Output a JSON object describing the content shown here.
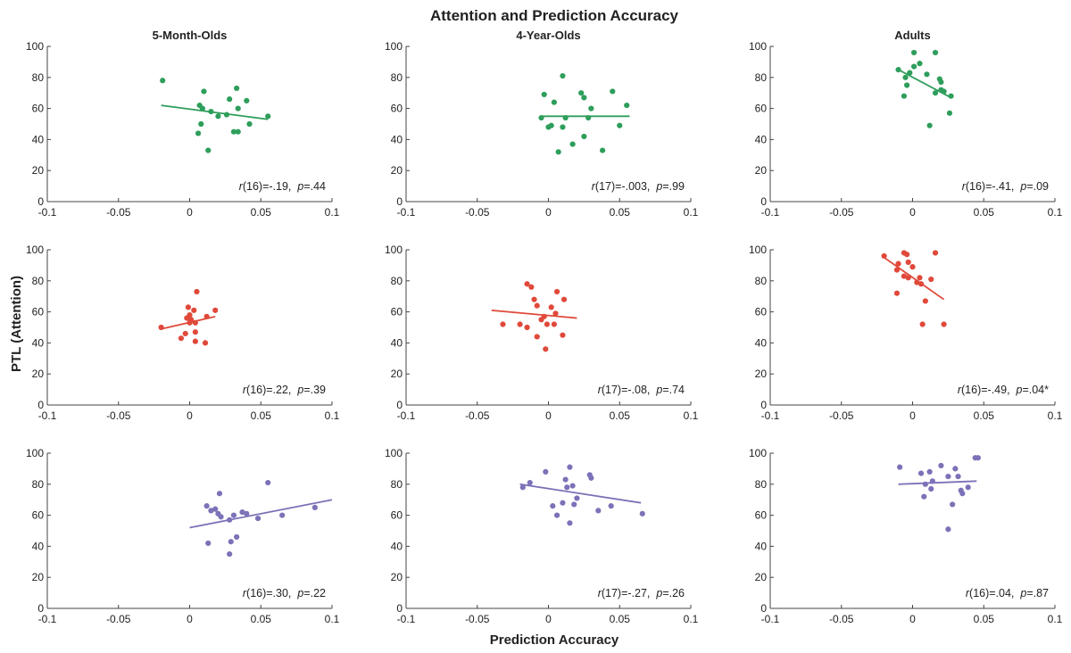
{
  "figure": {
    "title": "Attention and Prediction Accuracy",
    "xlabel": "Prediction Accuracy",
    "ylabel": "PTL (Attention)"
  },
  "colors": {
    "green": "#2e9e5b",
    "red": "#e0493a",
    "purple": "#7b72b8"
  },
  "chart_data": [
    {
      "type": "scatter",
      "title": "5-Month-Olds",
      "color": "green",
      "xlim": [
        -0.1,
        0.1
      ],
      "ylim": [
        0,
        100
      ],
      "xticks": [
        "-0.1",
        "-0.05",
        "0",
        "0.05",
        "0.1"
      ],
      "yticks": [
        "0",
        "20",
        "40",
        "60",
        "80",
        "100"
      ],
      "points": [
        [
          -0.019,
          78
        ],
        [
          0.01,
          71
        ],
        [
          0.007,
          62
        ],
        [
          0.009,
          60
        ],
        [
          0.015,
          58
        ],
        [
          0.02,
          55
        ],
        [
          0.026,
          56
        ],
        [
          0.028,
          66
        ],
        [
          0.033,
          73
        ],
        [
          0.034,
          60
        ],
        [
          0.04,
          65
        ],
        [
          0.008,
          50
        ],
        [
          0.006,
          44
        ],
        [
          0.013,
          33
        ],
        [
          0.031,
          45
        ],
        [
          0.034,
          45
        ],
        [
          0.042,
          50
        ],
        [
          0.055,
          55
        ]
      ],
      "fit": [
        [
          -0.02,
          62
        ],
        [
          0.055,
          53
        ]
      ],
      "stats": {
        "r_df": "(16)=-.19,",
        "p": "=.44"
      }
    },
    {
      "type": "scatter",
      "title": "4-Year-Olds",
      "color": "green",
      "xlim": [
        -0.1,
        0.1
      ],
      "ylim": [
        0,
        100
      ],
      "xticks": [
        "-0.1",
        "-0.05",
        "0",
        "0.05",
        "0.1"
      ],
      "yticks": [
        "0",
        "20",
        "40",
        "60",
        "80",
        "100"
      ],
      "points": [
        [
          0.01,
          81
        ],
        [
          -0.003,
          69
        ],
        [
          0.004,
          64
        ],
        [
          0.023,
          70
        ],
        [
          0.025,
          67
        ],
        [
          0.045,
          71
        ],
        [
          0.055,
          62
        ],
        [
          -0.005,
          54
        ],
        [
          0.012,
          54
        ],
        [
          0.03,
          60
        ],
        [
          0.028,
          54
        ],
        [
          0.002,
          49
        ],
        [
          0.01,
          48
        ],
        [
          0.0,
          48
        ],
        [
          0.05,
          49
        ],
        [
          0.025,
          42
        ],
        [
          0.017,
          37
        ],
        [
          0.038,
          33
        ],
        [
          0.007,
          32
        ]
      ],
      "fit": [
        [
          -0.005,
          55
        ],
        [
          0.057,
          55
        ]
      ],
      "stats": {
        "r_df": "(17)=-.003,",
        "p": "=.99"
      }
    },
    {
      "type": "scatter",
      "title": "Adults",
      "color": "green",
      "xlim": [
        -0.1,
        0.1
      ],
      "ylim": [
        0,
        100
      ],
      "xticks": [
        "-0.1",
        "-0.05",
        "0",
        "0.05",
        "0.1"
      ],
      "yticks": [
        "0",
        "20",
        "40",
        "60",
        "80",
        "100"
      ],
      "points": [
        [
          0.001,
          96
        ],
        [
          0.016,
          96
        ],
        [
          0.005,
          89
        ],
        [
          0.001,
          87
        ],
        [
          -0.01,
          85
        ],
        [
          0.01,
          82
        ],
        [
          -0.002,
          83
        ],
        [
          -0.005,
          80
        ],
        [
          0.019,
          79
        ],
        [
          0.02,
          77
        ],
        [
          -0.004,
          75
        ],
        [
          0.02,
          72
        ],
        [
          0.016,
          70
        ],
        [
          0.022,
          71
        ],
        [
          0.027,
          68
        ],
        [
          -0.006,
          68
        ],
        [
          0.026,
          57
        ],
        [
          0.012,
          49
        ]
      ],
      "fit": [
        [
          -0.01,
          85
        ],
        [
          0.027,
          67
        ]
      ],
      "stats": {
        "r_df": "(16)=-.41,",
        "p": "=.09"
      }
    },
    {
      "type": "scatter",
      "title": "",
      "color": "red",
      "xlim": [
        -0.1,
        0.1
      ],
      "ylim": [
        0,
        100
      ],
      "xticks": [
        "-0.1",
        "-0.05",
        "0",
        "0.05",
        "0.1"
      ],
      "yticks": [
        "0",
        "20",
        "40",
        "60",
        "80",
        "100"
      ],
      "points": [
        [
          0.005,
          73
        ],
        [
          -0.001,
          63
        ],
        [
          0.003,
          61
        ],
        [
          0.018,
          61
        ],
        [
          0.0,
          58
        ],
        [
          0.012,
          57
        ],
        [
          -0.002,
          56
        ],
        [
          0.001,
          55
        ],
        [
          0.0,
          53
        ],
        [
          0.004,
          53
        ],
        [
          -0.02,
          50
        ],
        [
          0.004,
          47
        ],
        [
          -0.003,
          46
        ],
        [
          -0.006,
          43
        ],
        [
          0.004,
          41
        ],
        [
          0.011,
          40
        ]
      ],
      "fit": [
        [
          -0.02,
          49
        ],
        [
          0.018,
          57
        ]
      ],
      "stats": {
        "r_df": "(16)=.22,",
        "p": "=.39"
      }
    },
    {
      "type": "scatter",
      "title": "",
      "color": "red",
      "xlim": [
        -0.1,
        0.1
      ],
      "ylim": [
        0,
        100
      ],
      "xticks": [
        "-0.1",
        "-0.05",
        "0",
        "0.05",
        "0.1"
      ],
      "yticks": [
        "0",
        "20",
        "40",
        "60",
        "80",
        "100"
      ],
      "points": [
        [
          -0.015,
          78
        ],
        [
          -0.012,
          76
        ],
        [
          0.006,
          73
        ],
        [
          0.011,
          68
        ],
        [
          -0.01,
          68
        ],
        [
          0.002,
          63
        ],
        [
          -0.008,
          64
        ],
        [
          0.005,
          59
        ],
        [
          -0.003,
          57
        ],
        [
          -0.005,
          55
        ],
        [
          0.004,
          52
        ],
        [
          -0.001,
          52
        ],
        [
          -0.02,
          52
        ],
        [
          -0.032,
          52
        ],
        [
          -0.015,
          50
        ],
        [
          0.01,
          45
        ],
        [
          -0.008,
          44
        ],
        [
          -0.002,
          36
        ]
      ],
      "fit": [
        [
          -0.04,
          61
        ],
        [
          0.02,
          56
        ]
      ],
      "stats": {
        "r_df": "(17)=-.08,",
        "p": "=.74"
      }
    },
    {
      "type": "scatter",
      "title": "",
      "color": "red",
      "xlim": [
        -0.1,
        0.1
      ],
      "ylim": [
        0,
        100
      ],
      "xticks": [
        "-0.1",
        "-0.05",
        "0",
        "0.05",
        "0.1"
      ],
      "yticks": [
        "0",
        "20",
        "40",
        "60",
        "80",
        "100"
      ],
      "points": [
        [
          -0.02,
          96
        ],
        [
          -0.006,
          98
        ],
        [
          -0.004,
          97
        ],
        [
          0.016,
          98
        ],
        [
          -0.003,
          92
        ],
        [
          -0.01,
          91
        ],
        [
          0.0,
          89
        ],
        [
          -0.011,
          87
        ],
        [
          -0.006,
          83
        ],
        [
          -0.003,
          82
        ],
        [
          0.005,
          82
        ],
        [
          0.003,
          79
        ],
        [
          0.013,
          81
        ],
        [
          0.006,
          78
        ],
        [
          -0.011,
          72
        ],
        [
          0.009,
          67
        ],
        [
          0.022,
          52
        ],
        [
          0.007,
          52
        ]
      ],
      "fit": [
        [
          -0.02,
          95
        ],
        [
          0.022,
          68
        ]
      ],
      "stats": {
        "r_df": "(16)=-.49,",
        "p": "=.04*"
      }
    },
    {
      "type": "scatter",
      "title": "",
      "color": "purple",
      "xlim": [
        -0.1,
        0.1
      ],
      "ylim": [
        0,
        100
      ],
      "xticks": [
        "-0.1",
        "-0.05",
        "0",
        "0.05",
        "0.1"
      ],
      "yticks": [
        "0",
        "20",
        "40",
        "60",
        "80",
        "100"
      ],
      "points": [
        [
          0.055,
          81
        ],
        [
          0.021,
          74
        ],
        [
          0.012,
          66
        ],
        [
          0.015,
          63
        ],
        [
          0.018,
          64
        ],
        [
          0.02,
          61
        ],
        [
          0.022,
          59
        ],
        [
          0.028,
          57
        ],
        [
          0.031,
          60
        ],
        [
          0.037,
          62
        ],
        [
          0.04,
          61
        ],
        [
          0.048,
          58
        ],
        [
          0.065,
          60
        ],
        [
          0.088,
          65
        ],
        [
          0.033,
          46
        ],
        [
          0.013,
          42
        ],
        [
          0.029,
          43
        ],
        [
          0.028,
          35
        ]
      ],
      "fit": [
        [
          0.0,
          52
        ],
        [
          0.1,
          70
        ]
      ],
      "stats": {
        "r_df": "(16)=.30,",
        "p": "=.22"
      }
    },
    {
      "type": "scatter",
      "title": "",
      "color": "purple",
      "xlim": [
        -0.1,
        0.1
      ],
      "ylim": [
        0,
        100
      ],
      "xticks": [
        "-0.1",
        "-0.05",
        "0",
        "0.05",
        "0.1"
      ],
      "yticks": [
        "0",
        "20",
        "40",
        "60",
        "80",
        "100"
      ],
      "points": [
        [
          0.015,
          91
        ],
        [
          -0.002,
          88
        ],
        [
          0.029,
          86
        ],
        [
          0.03,
          84
        ],
        [
          0.012,
          83
        ],
        [
          -0.013,
          81
        ],
        [
          -0.018,
          78
        ],
        [
          0.017,
          79
        ],
        [
          0.013,
          78
        ],
        [
          0.02,
          71
        ],
        [
          0.01,
          68
        ],
        [
          0.044,
          66
        ],
        [
          0.003,
          66
        ],
        [
          0.035,
          63
        ],
        [
          0.066,
          61
        ],
        [
          0.006,
          60
        ],
        [
          0.015,
          55
        ],
        [
          0.018,
          67
        ]
      ],
      "fit": [
        [
          -0.02,
          80
        ],
        [
          0.065,
          68
        ]
      ],
      "stats": {
        "r_df": "(17)=-.27,",
        "p": "=.26"
      }
    },
    {
      "type": "scatter",
      "title": "",
      "color": "purple",
      "xlim": [
        -0.1,
        0.1
      ],
      "ylim": [
        0,
        100
      ],
      "xticks": [
        "-0.1",
        "-0.05",
        "0",
        "0.05",
        "0.1"
      ],
      "yticks": [
        "0",
        "20",
        "40",
        "60",
        "80",
        "100"
      ],
      "points": [
        [
          -0.009,
          91
        ],
        [
          0.044,
          97
        ],
        [
          0.046,
          97
        ],
        [
          0.02,
          92
        ],
        [
          0.03,
          90
        ],
        [
          0.006,
          87
        ],
        [
          0.012,
          88
        ],
        [
          0.025,
          85
        ],
        [
          0.032,
          85
        ],
        [
          0.009,
          80
        ],
        [
          0.014,
          82
        ],
        [
          0.013,
          77
        ],
        [
          0.039,
          78
        ],
        [
          0.035,
          74
        ],
        [
          0.008,
          72
        ],
        [
          0.028,
          67
        ],
        [
          0.025,
          51
        ],
        [
          0.034,
          76
        ]
      ],
      "fit": [
        [
          -0.01,
          80
        ],
        [
          0.045,
          82
        ]
      ],
      "stats": {
        "r_df": "(16)=.04,",
        "p": "=.87"
      }
    }
  ]
}
